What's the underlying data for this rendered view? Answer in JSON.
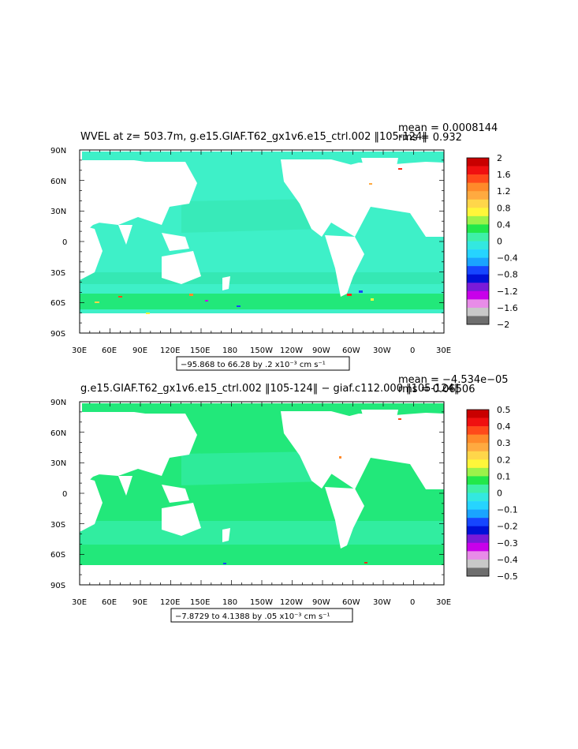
{
  "panel1": {
    "title": "WVEL at z= 503.7m, g.e15.GIAF.T62_gx1v6.e15_ctrl.002 ‖105-124‖",
    "mean": "mean = 0.0008144",
    "rms": "rms = 0.932",
    "range": "−95.868 to 66.28 by .2 x10⁻³ cm s⁻¹",
    "colorbar_labels": [
      "2",
      "1.6",
      "1.2",
      "0.8",
      "0.4",
      "0",
      "−0.4",
      "−0.8",
      "−1.2",
      "−1.6",
      "−2"
    ],
    "colorbar_colors": [
      "#c90000",
      "#f01010",
      "#ff4a1a",
      "#ff8a2a",
      "#ffaa40",
      "#ffd64a",
      "#fff63a",
      "#9cf24a",
      "#22e84a",
      "#3ef0a8",
      "#33e8e0",
      "#26d4ff",
      "#1aa4ff",
      "#1646ff",
      "#0010d8",
      "#7a1ad8",
      "#c800ea",
      "#e88ce8",
      "#c8c8c8",
      "#6e6e6e"
    ]
  },
  "panel2": {
    "title": "g.e15.GIAF.T62_gx1v6.e15_ctrl.002 ‖105-124‖ − giaf.c112.000 ‖105-124‖",
    "mean": "mean = −4.534e−05",
    "rms": "rms = 0.06506",
    "range": "−7.8729 to 4.1388 by .05 x10⁻³ cm s⁻¹",
    "colorbar_labels": [
      "0.5",
      "0.4",
      "0.3",
      "0.2",
      "0.1",
      "0",
      "−0.1",
      "−0.2",
      "−0.3",
      "−0.4",
      "−0.5"
    ],
    "colorbar_colors": [
      "#c90000",
      "#f01010",
      "#ff4a1a",
      "#ff8a2a",
      "#ffaa40",
      "#ffd64a",
      "#fff63a",
      "#9cf24a",
      "#22e84a",
      "#3ef0a8",
      "#33e8e0",
      "#26d4ff",
      "#1aa4ff",
      "#1646ff",
      "#0010d8",
      "#7a1ad8",
      "#c800ea",
      "#e88ce8",
      "#c8c8c8",
      "#6e6e6e"
    ]
  },
  "lat_labels": [
    "90N",
    "60N",
    "30N",
    "0",
    "30S",
    "60S",
    "90S"
  ],
  "lon_labels": [
    "30E",
    "60E",
    "90E",
    "120E",
    "150E",
    "180",
    "150W",
    "120W",
    "90W",
    "60W",
    "30W",
    "0",
    "30E"
  ],
  "colors": {
    "ocean1": "#3ef0c8",
    "ocean1_alt": "#33e8a8",
    "ocean2": "#22e87a",
    "ocean2_alt": "#3ef0c0",
    "land": "#ffffff"
  }
}
